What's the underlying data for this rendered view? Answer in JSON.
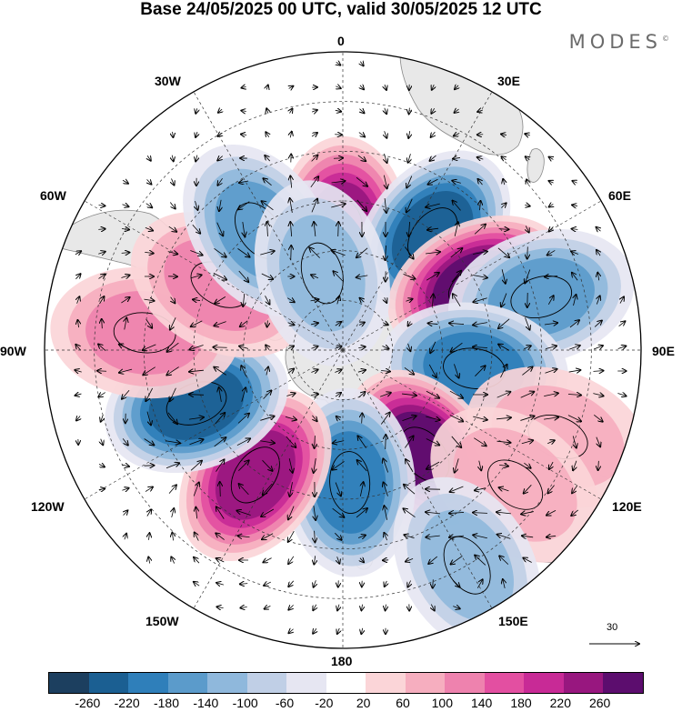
{
  "title": "Base 24/05/2025 00 UTC, valid 30/05/2025 12 UTC",
  "brand": "MODES",
  "brand_mark": "©",
  "longitude_labels": {
    "lon_0": "0",
    "lon_30e": "30E",
    "lon_60e": "60E",
    "lon_90e": "90E",
    "lon_120e": "120E",
    "lon_150e": "150E",
    "lon_180": "180",
    "lon_150w": "150W",
    "lon_120w": "120W",
    "lon_90w": "90W",
    "lon_60w": "60W",
    "lon_30w": "30W"
  },
  "reference_vector_label": "30",
  "colorbar": {
    "colors": [
      "#1c3f5f",
      "#1b5f92",
      "#2f7fba",
      "#5b9bcb",
      "#8fb8dc",
      "#c0cfe6",
      "#e6e6f2",
      "#ffffff",
      "#fbd5d8",
      "#f6aebf",
      "#ee82ae",
      "#e34fa1",
      "#c82a96",
      "#98177f",
      "#5c0d6e"
    ],
    "tick_labels": [
      "-260",
      "-220",
      "-180",
      "-140",
      "-100",
      "-60",
      "-20",
      "20",
      "60",
      "100",
      "140",
      "180",
      "220",
      "260"
    ]
  },
  "anomaly_centers": [
    {
      "name": "positive-anomaly-0e",
      "lon_deg": 0,
      "colat_deg": 36,
      "value": 230
    },
    {
      "name": "negative-anomaly-30e",
      "lon_deg": 38,
      "colat_deg": 44,
      "value": -200
    },
    {
      "name": "positive-anomaly-60e",
      "lon_deg": 65,
      "colat_deg": 45,
      "value": 250
    },
    {
      "name": "negative-anomaly-75e",
      "lon_deg": 75,
      "colat_deg": 62,
      "value": -120
    },
    {
      "name": "negative-anomaly-95e",
      "lon_deg": 98,
      "colat_deg": 40,
      "value": -190
    },
    {
      "name": "positive-anomaly-140e",
      "lon_deg": 142,
      "colat_deg": 40,
      "value": 240
    },
    {
      "name": "negative-anomaly-175e",
      "lon_deg": 177,
      "colat_deg": 40,
      "value": -180
    },
    {
      "name": "positive-anomaly-145w",
      "lon_deg": -145,
      "colat_deg": 46,
      "value": 230
    },
    {
      "name": "negative-anomaly-110w",
      "lon_deg": -110,
      "colat_deg": 47,
      "value": -220
    },
    {
      "name": "positive-anomaly-85w",
      "lon_deg": -85,
      "colat_deg": 60,
      "value": 100
    },
    {
      "name": "positive-anomaly-65w",
      "lon_deg": -62,
      "colat_deg": 42,
      "value": 90
    },
    {
      "name": "negative-anomaly-35w",
      "lon_deg": -35,
      "colat_deg": 44,
      "value": -150
    },
    {
      "name": "negative-anomaly-20w",
      "lon_deg": -15,
      "colat_deg": 24,
      "value": -80
    },
    {
      "name": "positive-anomaly-110e",
      "lon_deg": 112,
      "colat_deg": 70,
      "value": 60
    },
    {
      "name": "positive-anomaly-130e",
      "lon_deg": 128,
      "colat_deg": 66,
      "value": 50
    },
    {
      "name": "negative-anomaly-150e",
      "lon_deg": 150,
      "colat_deg": 75,
      "value": -80
    }
  ]
}
